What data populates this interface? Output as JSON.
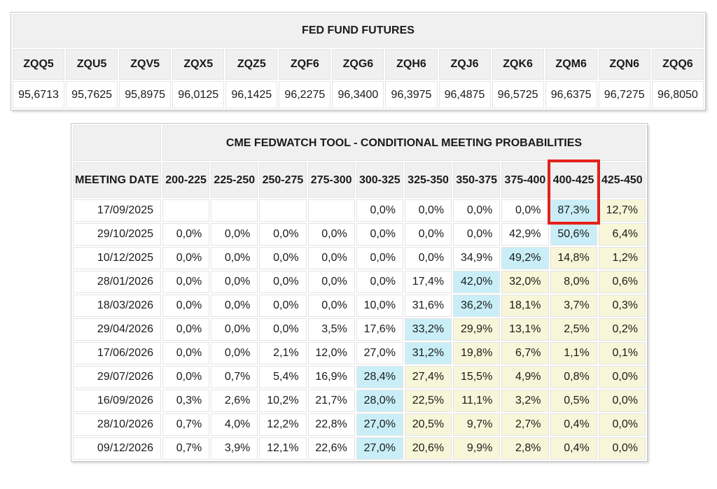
{
  "futures_table": {
    "title": "FED FUND FUTURES",
    "contracts": [
      {
        "code": "ZQQ5",
        "price": "95,6713"
      },
      {
        "code": "ZQU5",
        "price": "95,7625"
      },
      {
        "code": "ZQV5",
        "price": "95,8975"
      },
      {
        "code": "ZQX5",
        "price": "96,0125"
      },
      {
        "code": "ZQZ5",
        "price": "96,1425"
      },
      {
        "code": "ZQF6",
        "price": "96,2275"
      },
      {
        "code": "ZQG6",
        "price": "96,3400"
      },
      {
        "code": "ZQH6",
        "price": "96,3975"
      },
      {
        "code": "ZQJ6",
        "price": "96,4875"
      },
      {
        "code": "ZQK6",
        "price": "96,5725"
      },
      {
        "code": "ZQM6",
        "price": "96,6375"
      },
      {
        "code": "ZQN6",
        "price": "96,7275"
      },
      {
        "code": "ZQQ6",
        "price": "96,8050"
      }
    ]
  },
  "fedwatch_table": {
    "title": "CME FEDWATCH TOOL - CONDITIONAL MEETING PROBABILITIES",
    "date_header": "MEETING DATE",
    "rate_headers": [
      "200-225",
      "225-250",
      "250-275",
      "275-300",
      "300-325",
      "325-350",
      "350-375",
      "375-400",
      "400-425",
      "425-450"
    ],
    "highlighted_header": "400-425",
    "rows": [
      {
        "date": "17/09/2025",
        "values": [
          "",
          "",
          "",
          "",
          "0,0%",
          "0,0%",
          "0,0%",
          "0,0%",
          "87,3%",
          "12,7%"
        ],
        "cyan_index": 8
      },
      {
        "date": "29/10/2025",
        "values": [
          "0,0%",
          "0,0%",
          "0,0%",
          "0,0%",
          "0,0%",
          "0,0%",
          "0,0%",
          "42,9%",
          "50,6%",
          "6,4%"
        ],
        "cyan_index": 8
      },
      {
        "date": "10/12/2025",
        "values": [
          "0,0%",
          "0,0%",
          "0,0%",
          "0,0%",
          "0,0%",
          "0,0%",
          "34,9%",
          "49,2%",
          "14,8%",
          "1,2%"
        ],
        "cyan_index": 7
      },
      {
        "date": "28/01/2026",
        "values": [
          "0,0%",
          "0,0%",
          "0,0%",
          "0,0%",
          "0,0%",
          "17,4%",
          "42,0%",
          "32,0%",
          "8,0%",
          "0,6%"
        ],
        "cyan_index": 6
      },
      {
        "date": "18/03/2026",
        "values": [
          "0,0%",
          "0,0%",
          "0,0%",
          "0,0%",
          "10,0%",
          "31,6%",
          "36,2%",
          "18,1%",
          "3,7%",
          "0,3%"
        ],
        "cyan_index": 6
      },
      {
        "date": "29/04/2026",
        "values": [
          "0,0%",
          "0,0%",
          "0,0%",
          "3,5%",
          "17,6%",
          "33,2%",
          "29,9%",
          "13,1%",
          "2,5%",
          "0,2%"
        ],
        "cyan_index": 5
      },
      {
        "date": "17/06/2026",
        "values": [
          "0,0%",
          "0,0%",
          "2,1%",
          "12,0%",
          "27,0%",
          "31,2%",
          "19,8%",
          "6,7%",
          "1,1%",
          "0,1%"
        ],
        "cyan_index": 5
      },
      {
        "date": "29/07/2026",
        "values": [
          "0,0%",
          "0,7%",
          "5,4%",
          "16,9%",
          "28,4%",
          "27,4%",
          "15,5%",
          "4,9%",
          "0,8%",
          "0,0%"
        ],
        "cyan_index": 4
      },
      {
        "date": "16/09/2026",
        "values": [
          "0,3%",
          "2,6%",
          "10,2%",
          "21,7%",
          "28,0%",
          "22,5%",
          "11,1%",
          "3,2%",
          "0,5%",
          "0,0%"
        ],
        "cyan_index": 4
      },
      {
        "date": "28/10/2026",
        "values": [
          "0,7%",
          "4,0%",
          "12,2%",
          "22,8%",
          "27,0%",
          "20,5%",
          "9,7%",
          "2,7%",
          "0,4%",
          "0,0%"
        ],
        "cyan_index": 4
      },
      {
        "date": "09/12/2026",
        "values": [
          "0,7%",
          "3,9%",
          "12,1%",
          "22,6%",
          "27,0%",
          "20,6%",
          "9,9%",
          "2,8%",
          "0,4%",
          "0,0%"
        ],
        "cyan_index": 4
      }
    ]
  },
  "colors": {
    "cyan_highlight": "#c9eef7",
    "yellow_highlight": "#f7f6d8",
    "red_box": "#e3211c",
    "header_bg": "#f0f0f0"
  }
}
